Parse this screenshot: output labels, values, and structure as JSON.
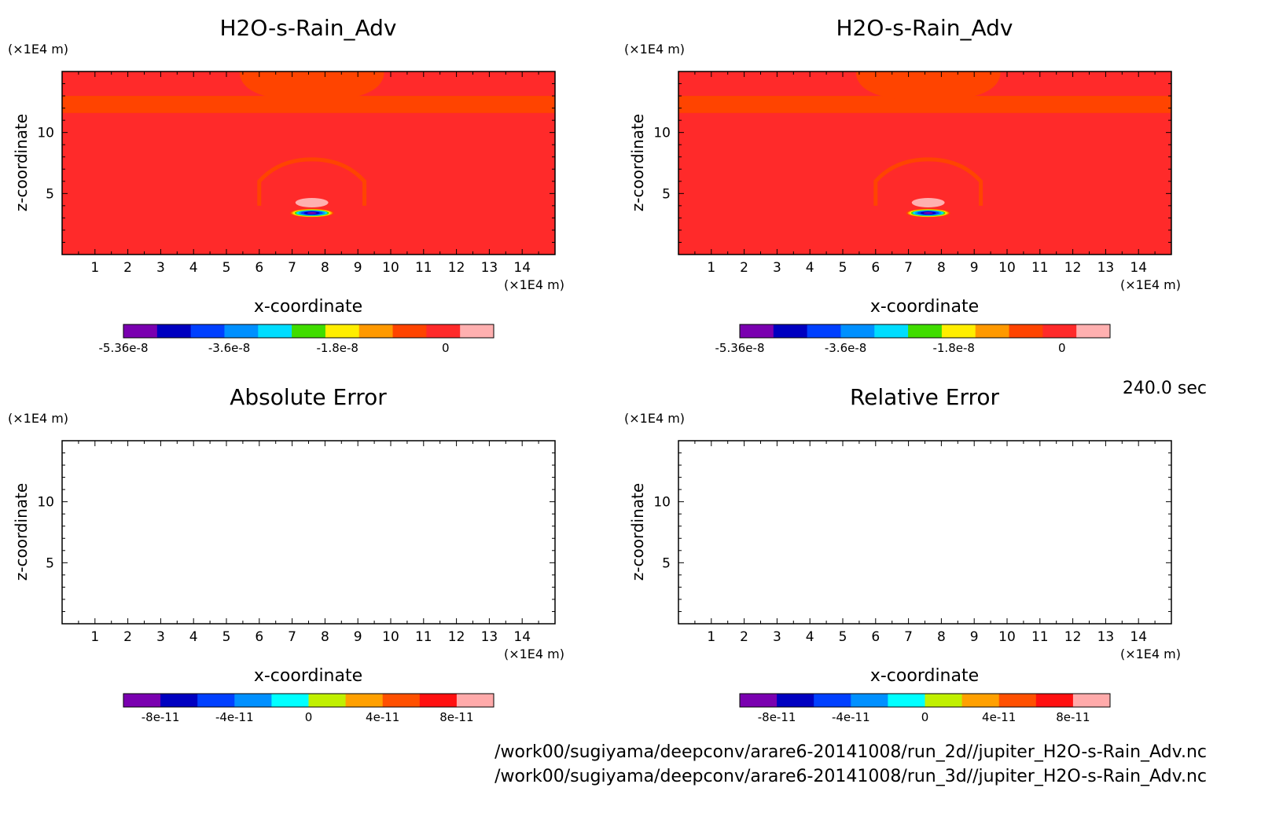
{
  "time_label": "240.0 sec",
  "file_paths": [
    "/work00/sugiyama/deepconv/arare6-20141008/run_2d//jupiter_H2O-s-Rain_Adv.nc",
    "/work00/sugiyama/deepconv/arare6-20141008/run_3d//jupiter_H2O-s-Rain_Adv.nc"
  ],
  "colors": {
    "background_field": "#ff2a2a",
    "band_field": "#ff4400",
    "highlight": "#ffb0b0",
    "frame": "#000000"
  },
  "chart_data": [
    {
      "type": "heatmap",
      "title": "H2O-s-Rain_Adv",
      "xlabel": "x-coordinate",
      "ylabel": "z-coordinate",
      "x_unit": "(×1E4 m)",
      "y_unit": "(×1E4 m)",
      "xlim": [
        0,
        15
      ],
      "ylim": [
        0,
        15
      ],
      "x_ticks": [
        1,
        2,
        3,
        4,
        5,
        6,
        7,
        8,
        9,
        10,
        11,
        12,
        13,
        14
      ],
      "y_ticks": [
        5,
        10
      ],
      "colorbar": {
        "colors": [
          "#7a00b0",
          "#0000c0",
          "#0040ff",
          "#0090ff",
          "#00ddff",
          "#40dd00",
          "#ffee00",
          "#ff9900",
          "#ff4400",
          "#ff2a2a",
          "#ffb0b0"
        ],
        "tick_labels": [
          "-5.36e-8",
          "-3.6e-8",
          "-1.8e-8",
          "0"
        ],
        "tick_values": [
          -5.36e-08,
          -3.6e-08,
          -1.8e-08,
          0
        ],
        "range": [
          -5.36e-08,
          8e-09
        ]
      },
      "field": "filled"
    },
    {
      "type": "heatmap",
      "title": "H2O-s-Rain_Adv",
      "xlabel": "x-coordinate",
      "ylabel": "z-coordinate",
      "x_unit": "(×1E4 m)",
      "y_unit": "(×1E4 m)",
      "xlim": [
        0,
        15
      ],
      "ylim": [
        0,
        15
      ],
      "x_ticks": [
        1,
        2,
        3,
        4,
        5,
        6,
        7,
        8,
        9,
        10,
        11,
        12,
        13,
        14
      ],
      "y_ticks": [
        5,
        10
      ],
      "colorbar": {
        "colors": [
          "#7a00b0",
          "#0000c0",
          "#0040ff",
          "#0090ff",
          "#00ddff",
          "#40dd00",
          "#ffee00",
          "#ff9900",
          "#ff4400",
          "#ff2a2a",
          "#ffb0b0"
        ],
        "tick_labels": [
          "-5.36e-8",
          "-3.6e-8",
          "-1.8e-8",
          "0"
        ],
        "tick_values": [
          -5.36e-08,
          -3.6e-08,
          -1.8e-08,
          0
        ],
        "range": [
          -5.36e-08,
          8e-09
        ]
      },
      "field": "filled"
    },
    {
      "type": "heatmap",
      "title": "Absolute Error",
      "xlabel": "x-coordinate",
      "ylabel": "z-coordinate",
      "x_unit": "(×1E4 m)",
      "y_unit": "(×1E4 m)",
      "xlim": [
        0,
        15
      ],
      "ylim": [
        0,
        15
      ],
      "x_ticks": [
        1,
        2,
        3,
        4,
        5,
        6,
        7,
        8,
        9,
        10,
        11,
        12,
        13,
        14
      ],
      "y_ticks": [
        5,
        10
      ],
      "colorbar": {
        "colors": [
          "#7a00b0",
          "#0000c0",
          "#0040ff",
          "#0090ff",
          "#00ffff",
          "#c0f000",
          "#ffa000",
          "#ff5000",
          "#ff1010",
          "#ffaaaa"
        ],
        "tick_labels": [
          "-8e-11",
          "-4e-11",
          "0",
          "4e-11",
          "8e-11"
        ],
        "tick_values": [
          -8e-11,
          -4e-11,
          0,
          4e-11,
          8e-11
        ],
        "range": [
          -1e-10,
          1e-10
        ]
      },
      "field": "empty"
    },
    {
      "type": "heatmap",
      "title": "Relative Error",
      "xlabel": "x-coordinate",
      "ylabel": "z-coordinate",
      "x_unit": "(×1E4 m)",
      "y_unit": "(×1E4 m)",
      "xlim": [
        0,
        15
      ],
      "ylim": [
        0,
        15
      ],
      "x_ticks": [
        1,
        2,
        3,
        4,
        5,
        6,
        7,
        8,
        9,
        10,
        11,
        12,
        13,
        14
      ],
      "y_ticks": [
        5,
        10
      ],
      "colorbar": {
        "colors": [
          "#7a00b0",
          "#0000c0",
          "#0040ff",
          "#0090ff",
          "#00ffff",
          "#c0f000",
          "#ffa000",
          "#ff5000",
          "#ff1010",
          "#ffaaaa"
        ],
        "tick_labels": [
          "-8e-11",
          "-4e-11",
          "0",
          "4e-11",
          "8e-11"
        ],
        "tick_values": [
          -8e-11,
          -4e-11,
          0,
          4e-11,
          8e-11
        ],
        "range": [
          -1e-10,
          1e-10
        ]
      },
      "field": "empty"
    }
  ]
}
